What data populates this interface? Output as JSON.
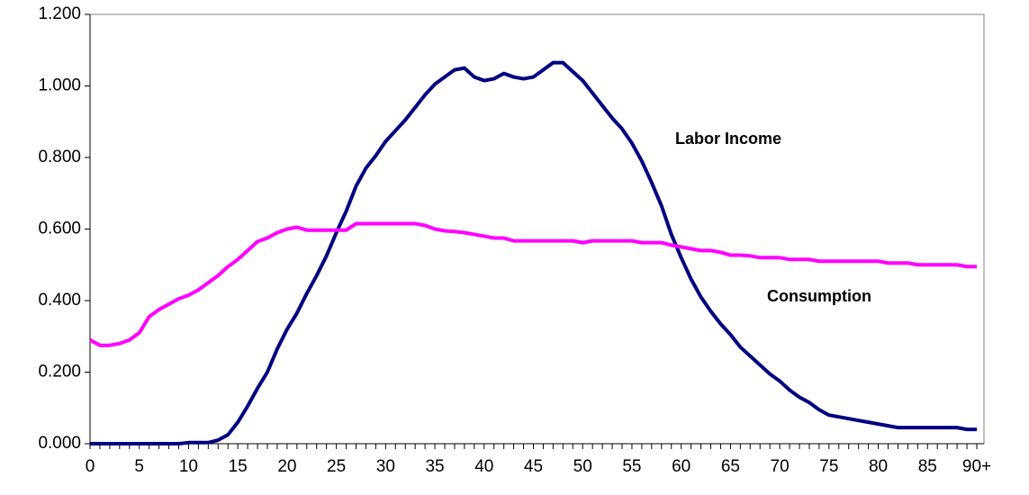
{
  "chart_data": {
    "type": "line",
    "categories": [
      "0",
      null,
      null,
      null,
      null,
      "5",
      null,
      null,
      null,
      null,
      "10",
      null,
      null,
      null,
      null,
      "15",
      null,
      null,
      null,
      null,
      "20",
      null,
      null,
      null,
      null,
      "25",
      null,
      null,
      null,
      null,
      "30",
      null,
      null,
      null,
      null,
      "35",
      null,
      null,
      null,
      null,
      "40",
      null,
      null,
      null,
      null,
      "45",
      null,
      null,
      null,
      null,
      "50",
      null,
      null,
      null,
      null,
      "55",
      null,
      null,
      null,
      null,
      "60",
      null,
      null,
      null,
      null,
      "65",
      null,
      null,
      null,
      null,
      "70",
      null,
      null,
      null,
      null,
      "75",
      null,
      null,
      null,
      null,
      "80",
      null,
      null,
      null,
      null,
      "85",
      null,
      null,
      null,
      null,
      "90+"
    ],
    "series": [
      {
        "name": "Labor Income",
        "color": "#000080",
        "values": [
          0,
          0,
          0,
          0,
          0,
          0,
          0,
          0,
          0,
          0,
          0.003,
          0.003,
          0.003,
          0.01,
          0.025,
          0.06,
          0.105,
          0.155,
          0.2,
          0.265,
          0.32,
          0.365,
          0.42,
          0.47,
          0.525,
          0.59,
          0.65,
          0.72,
          0.77,
          0.805,
          0.845,
          0.875,
          0.905,
          0.94,
          0.975,
          1.005,
          1.025,
          1.045,
          1.05,
          1.025,
          1.015,
          1.02,
          1.035,
          1.025,
          1.02,
          1.025,
          1.045,
          1.065,
          1.065,
          1.04,
          1.015,
          0.98,
          0.945,
          0.91,
          0.88,
          0.84,
          0.79,
          0.73,
          0.665,
          0.585,
          0.52,
          0.46,
          0.41,
          0.37,
          0.335,
          0.305,
          0.27,
          0.245,
          0.22,
          0.195,
          0.175,
          0.15,
          0.13,
          0.115,
          0.095,
          0.08,
          0.075,
          0.07,
          0.065,
          0.06,
          0.055,
          0.05,
          0.045,
          0.045,
          0.045,
          0.045,
          0.045,
          0.045,
          0.045,
          0.04,
          0.04
        ]
      },
      {
        "name": "Consumption",
        "color": "#ff00ff",
        "values": [
          0.29,
          0.275,
          0.275,
          0.28,
          0.29,
          0.31,
          0.355,
          0.375,
          0.39,
          0.405,
          0.415,
          0.43,
          0.45,
          0.47,
          0.495,
          0.515,
          0.54,
          0.565,
          0.575,
          0.59,
          0.6,
          0.605,
          0.597,
          0.597,
          0.597,
          0.597,
          0.597,
          0.615,
          0.615,
          0.615,
          0.615,
          0.615,
          0.615,
          0.615,
          0.61,
          0.6,
          0.595,
          0.593,
          0.59,
          0.585,
          0.58,
          0.575,
          0.575,
          0.567,
          0.567,
          0.567,
          0.567,
          0.567,
          0.567,
          0.567,
          0.562,
          0.567,
          0.567,
          0.567,
          0.567,
          0.567,
          0.562,
          0.562,
          0.562,
          0.555,
          0.55,
          0.545,
          0.54,
          0.54,
          0.535,
          0.527,
          0.527,
          0.525,
          0.52,
          0.52,
          0.52,
          0.515,
          0.515,
          0.515,
          0.51,
          0.51,
          0.51,
          0.51,
          0.51,
          0.51,
          0.51,
          0.505,
          0.505,
          0.505,
          0.5,
          0.5,
          0.5,
          0.5,
          0.5,
          0.495,
          0.495
        ]
      }
    ],
    "ylim": [
      0,
      1.2
    ],
    "yticks": [
      {
        "value": 0,
        "label": "0.000"
      },
      {
        "value": 0.2,
        "label": "0.200"
      },
      {
        "value": 0.4,
        "label": "0.400"
      },
      {
        "value": 0.6,
        "label": "0.600"
      },
      {
        "value": 0.8,
        "label": "0.800"
      },
      {
        "value": 1.0,
        "label": "1.000"
      },
      {
        "value": 1.2,
        "label": "1.200"
      }
    ],
    "grid": false
  }
}
